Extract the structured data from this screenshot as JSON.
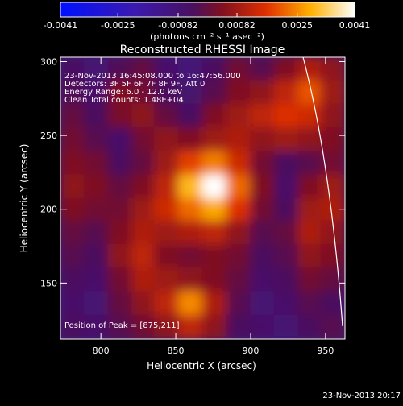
{
  "chart_data": {
    "type": "heatmap",
    "title": "Reconstructed RHESSI Image",
    "x_label": "Heliocentric X (arcsec)",
    "y_label": "Heliocentric Y (arcsec)",
    "annotations": [
      "23-Nov-2013 16:45:08.000 to 16:47:56.000",
      "Detectors: 3F 5F 6F 7F 8F 9F, Att 0",
      "Energy Range: 6.0 - 12.0 keV",
      "Clean     Total counts: 1.48E+04",
      "Position of Peak = [875,211]"
    ],
    "footer": "23-Nov-2013 20:17",
    "colorbar": {
      "label": "(photons cm⁻² s⁻¹ asec⁻²)",
      "clim": [
        -0.0041,
        0.0041
      ],
      "ticks": [
        -0.0041,
        -0.0025,
        -0.00082,
        0.00082,
        0.0025,
        0.0041
      ]
    },
    "xlim": [
      773,
      963
    ],
    "ylim": [
      112,
      303
    ],
    "xticks": [
      800,
      850,
      900,
      950
    ],
    "yticks": [
      150,
      200,
      250,
      300
    ],
    "x": [
      781,
      797,
      813,
      829,
      844,
      860,
      876,
      892,
      908,
      924,
      940,
      955
    ],
    "y": [
      295,
      279,
      263,
      247,
      231,
      215,
      199,
      184,
      168,
      152,
      136,
      120
    ],
    "z": [
      [
        -0.0005,
        -0.0008,
        -0.0003,
        0,
        -0.0006,
        -0.0009,
        -0.0004,
        0.0002,
        -0.0002,
        0.0004,
        0.001,
        0.0006
      ],
      [
        -0.0003,
        -0.0006,
        0.0004,
        0.0002,
        -0.0004,
        -0.0007,
        -0.0002,
        0.0004,
        0.0006,
        0.0012,
        0.002,
        0.0008
      ],
      [
        0,
        -0.0004,
        0.0003,
        0.0006,
        0,
        -0.0005,
        0.0004,
        0.0008,
        0.0012,
        0.0016,
        0.0014,
        0.0006
      ],
      [
        0.0002,
        -0.0002,
        -0.0006,
        0.0002,
        0.0006,
        0.0004,
        0.0008,
        0.001,
        0.0006,
        0.0008,
        0.0006,
        0.0004
      ],
      [
        0.0004,
        0.0002,
        -0.0004,
        0,
        0.0008,
        0.0018,
        0.0024,
        0.0014,
        0.0002,
        -0.0004,
        -0.0002,
        0.0002
      ],
      [
        0.0006,
        0.0004,
        0,
        0.0004,
        0.0012,
        0.003,
        0.0041,
        0.0022,
        0.0004,
        -0.0006,
        0.0004,
        0.0008
      ],
      [
        0.0004,
        0.0002,
        0.0002,
        0.0008,
        0.0014,
        0.0022,
        0.0028,
        0.0016,
        0.0002,
        -0.0004,
        0.0008,
        0.001
      ],
      [
        0,
        -0.0002,
        0.0004,
        0.001,
        0.0008,
        0.001,
        0.0012,
        0.0006,
        -0.0002,
        0,
        0.001,
        0.0006
      ],
      [
        -0.0002,
        -0.0004,
        0.0006,
        0.0012,
        0.0004,
        0.0002,
        0.0004,
        0.0002,
        -0.0004,
        -0.0002,
        0.0006,
        0.0004
      ],
      [
        -0.0004,
        -0.0006,
        0.0002,
        0.001,
        0.0008,
        0.0006,
        0.0004,
        0,
        -0.0006,
        -0.0004,
        0.0002,
        0
      ],
      [
        -0.0006,
        -0.0008,
        0,
        0.0006,
        0.0012,
        0.0025,
        0.001,
        -0.0002,
        -0.0008,
        -0.0006,
        -0.0002,
        -0.0004
      ],
      [
        -0.0004,
        -0.0006,
        -0.0002,
        0.0002,
        0.0006,
        0.0012,
        0.0006,
        -0.0004,
        -0.0006,
        -0.0008,
        -0.0004,
        -0.0002
      ]
    ]
  }
}
